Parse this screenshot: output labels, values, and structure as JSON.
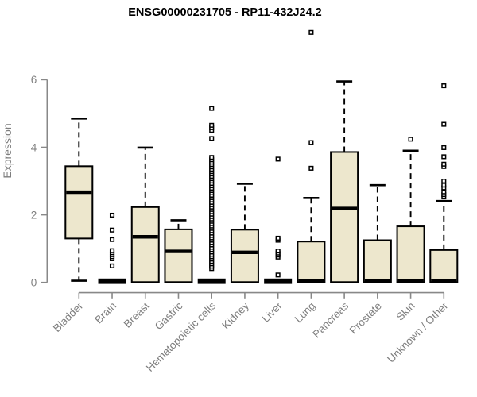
{
  "chart_data": {
    "type": "boxplot",
    "title": "ENSG00000231705 - RP11-432J24.2",
    "ylabel": "Expression",
    "xlabel": "",
    "ylim": [
      0,
      6
    ],
    "yticks": [
      0,
      2,
      4,
      6
    ],
    "grid": false,
    "legend": "none",
    "categories": [
      "Bladder",
      "Brain",
      "Breast",
      "Gastric",
      "Hematopoietic cells",
      "Kidney",
      "Liver",
      "Lung",
      "Pancreas",
      "Prostate",
      "Skin",
      "Unknown / Other"
    ],
    "series": [
      {
        "name": "Bladder",
        "whisker_low": 0.05,
        "q1": 1.3,
        "median": 2.67,
        "q3": 3.44,
        "whisker_high": 4.85,
        "outliers": []
      },
      {
        "name": "Brain",
        "whisker_low": 0.0,
        "q1": 0.0,
        "median": 0.02,
        "q3": 0.06,
        "whisker_high": 0.08,
        "outliers": [
          0.49,
          0.7,
          0.76,
          0.82,
          0.88,
          0.94,
          1.27,
          1.55,
          1.99
        ]
      },
      {
        "name": "Breast",
        "whisker_low": 0.0,
        "q1": 0.01,
        "median": 1.35,
        "q3": 2.23,
        "whisker_high": 3.99,
        "outliers": []
      },
      {
        "name": "Gastric",
        "whisker_low": 0.0,
        "q1": 0.01,
        "median": 0.92,
        "q3": 1.57,
        "whisker_high": 1.84,
        "outliers": []
      },
      {
        "name": "Hematopoietic cells",
        "whisker_low": 0.0,
        "q1": 0.0,
        "median": 0.02,
        "q3": 0.06,
        "whisker_high": 0.08,
        "outliers": [
          0.41,
          0.48,
          0.55,
          0.62,
          0.69,
          0.76,
          0.83,
          0.9,
          0.97,
          1.04,
          1.11,
          1.18,
          1.25,
          1.32,
          1.39,
          1.46,
          1.53,
          1.6,
          1.67,
          1.74,
          1.81,
          1.88,
          1.95,
          2.02,
          2.09,
          2.16,
          2.23,
          2.3,
          2.37,
          2.44,
          2.51,
          2.58,
          2.65,
          2.72,
          2.79,
          2.86,
          2.93,
          3.0,
          3.07,
          3.14,
          3.21,
          3.28,
          3.35,
          3.42,
          3.49,
          3.56,
          3.63,
          3.7,
          4.26,
          4.5,
          4.58,
          4.65,
          5.15
        ]
      },
      {
        "name": "Kidney",
        "whisker_low": 0.0,
        "q1": 0.01,
        "median": 0.89,
        "q3": 1.56,
        "whisker_high": 2.92,
        "outliers": []
      },
      {
        "name": "Liver",
        "whisker_low": 0.0,
        "q1": 0.0,
        "median": 0.02,
        "q3": 0.06,
        "whisker_high": 0.08,
        "outliers": [
          0.22,
          0.75,
          0.81,
          0.87,
          0.93,
          1.25,
          1.31,
          3.65
        ]
      },
      {
        "name": "Lung",
        "whisker_low": 0.0,
        "q1": 0.01,
        "median": 0.04,
        "q3": 1.21,
        "whisker_high": 2.5,
        "outliers": [
          3.38,
          4.14,
          7.4
        ]
      },
      {
        "name": "Pancreas",
        "whisker_low": 0.0,
        "q1": 0.01,
        "median": 2.19,
        "q3": 3.86,
        "whisker_high": 5.95,
        "outliers": []
      },
      {
        "name": "Prostate",
        "whisker_low": 0.0,
        "q1": 0.01,
        "median": 0.04,
        "q3": 1.25,
        "whisker_high": 2.88,
        "outliers": []
      },
      {
        "name": "Skin",
        "whisker_low": 0.0,
        "q1": 0.01,
        "median": 0.04,
        "q3": 1.66,
        "whisker_high": 3.9,
        "outliers": [
          4.24
        ]
      },
      {
        "name": "Unknown / Other",
        "whisker_low": 0.0,
        "q1": 0.01,
        "median": 0.04,
        "q3": 0.96,
        "whisker_high": 2.41,
        "outliers": [
          2.53,
          2.6,
          2.68,
          2.8,
          2.88,
          3.0,
          3.43,
          3.5,
          3.72,
          3.99,
          4.68,
          5.82
        ]
      }
    ],
    "colors": {
      "box_fill": "#EDE7CD",
      "box_border": "#000000",
      "median": "#000000",
      "whisker": "#000000",
      "outlier_stroke": "#000000",
      "outlier_fill": "#FFFFFF",
      "axis_line": "#888888",
      "axis_text": "#7E7E7E",
      "title": "#000000"
    }
  }
}
